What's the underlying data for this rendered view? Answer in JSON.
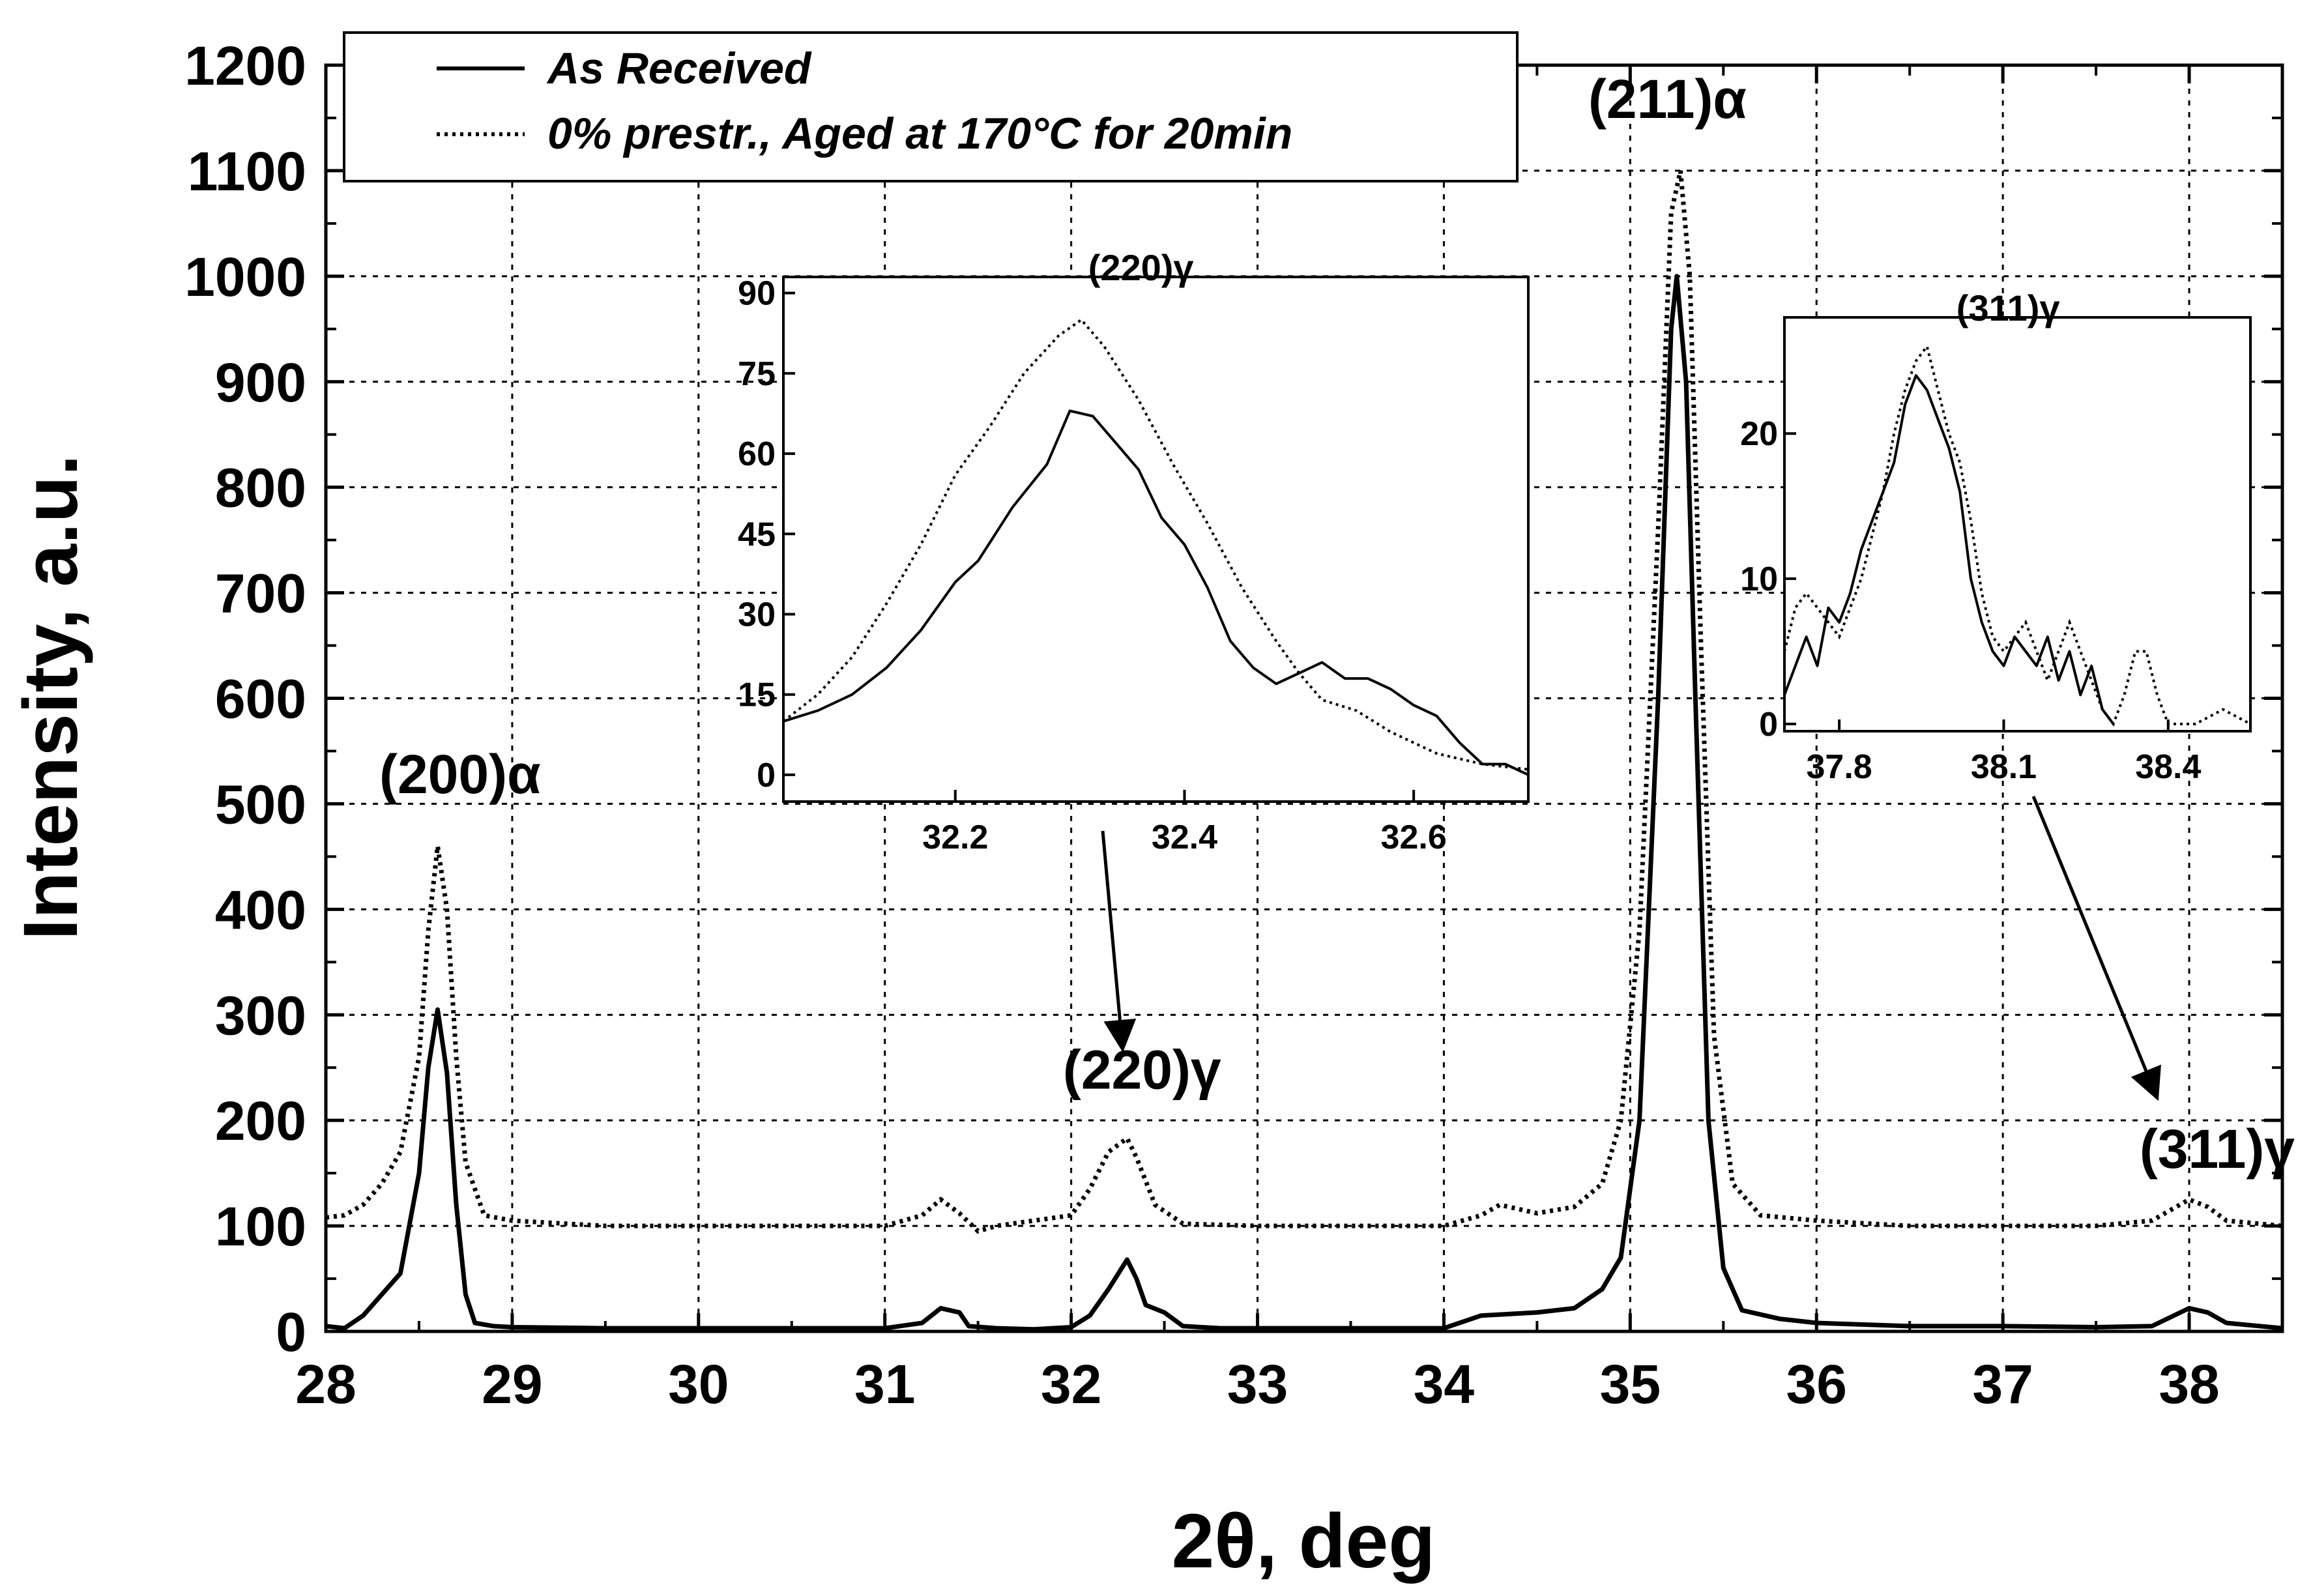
{
  "chart_data": [
    {
      "type": "line",
      "name": "main",
      "xlabel": "2θ, deg",
      "ylabel": "Intensity, a.u.",
      "xlim": [
        28,
        38.5
      ],
      "ylim": [
        0,
        1200
      ],
      "x_ticks": [
        "28",
        "29",
        "30",
        "31",
        "32",
        "33",
        "34",
        "35",
        "36",
        "37",
        "38"
      ],
      "y_ticks": [
        "0",
        "100",
        "200",
        "300",
        "400",
        "500",
        "600",
        "700",
        "800",
        "900",
        "1000",
        "1100",
        "1200"
      ],
      "grid": true,
      "legend": {
        "placement": "top-left",
        "entries": [
          "As Received",
          "0% prestr., Aged at 170°C for 20min"
        ]
      },
      "annotations": [
        {
          "text": "(200)α",
          "x": 28.72,
          "y": 510
        },
        {
          "text": "(220)γ",
          "x": 32.38,
          "y": 230
        },
        {
          "text": "(211)α",
          "x": 35.2,
          "y": 1150
        },
        {
          "text": "(311)γ",
          "x": 38.15,
          "y": 155
        }
      ],
      "series": [
        {
          "name": "As Received",
          "style": "solid",
          "points": [
            [
              28,
              5
            ],
            [
              28.1,
              3
            ],
            [
              28.2,
              15
            ],
            [
              28.3,
              35
            ],
            [
              28.4,
              55
            ],
            [
              28.5,
              150
            ],
            [
              28.55,
              250
            ],
            [
              28.6,
              305
            ],
            [
              28.65,
              245
            ],
            [
              28.7,
              120
            ],
            [
              28.75,
              35
            ],
            [
              28.8,
              8
            ],
            [
              28.9,
              5
            ],
            [
              29,
              4
            ],
            [
              29.5,
              3
            ],
            [
              30,
              3
            ],
            [
              30.5,
              3
            ],
            [
              31,
              3
            ],
            [
              31.2,
              8
            ],
            [
              31.3,
              22
            ],
            [
              31.4,
              18
            ],
            [
              31.45,
              5
            ],
            [
              31.6,
              3
            ],
            [
              31.8,
              2
            ],
            [
              32,
              4
            ],
            [
              32.1,
              15
            ],
            [
              32.2,
              40
            ],
            [
              32.3,
              68
            ],
            [
              32.35,
              50
            ],
            [
              32.4,
              25
            ],
            [
              32.5,
              18
            ],
            [
              32.6,
              5
            ],
            [
              32.8,
              3
            ],
            [
              33,
              3
            ],
            [
              33.5,
              3
            ],
            [
              34,
              3
            ],
            [
              34.2,
              15
            ],
            [
              34.5,
              18
            ],
            [
              34.7,
              22
            ],
            [
              34.85,
              40
            ],
            [
              34.95,
              70
            ],
            [
              35.05,
              200
            ],
            [
              35.15,
              600
            ],
            [
              35.22,
              950
            ],
            [
              35.25,
              1000
            ],
            [
              35.3,
              900
            ],
            [
              35.35,
              600
            ],
            [
              35.42,
              200
            ],
            [
              35.5,
              60
            ],
            [
              35.6,
              20
            ],
            [
              35.8,
              12
            ],
            [
              36,
              8
            ],
            [
              36.5,
              5
            ],
            [
              37,
              5
            ],
            [
              37.5,
              4
            ],
            [
              37.8,
              5
            ],
            [
              38,
              22
            ],
            [
              38.1,
              18
            ],
            [
              38.2,
              8
            ],
            [
              38.5,
              3
            ]
          ]
        },
        {
          "name": "0% prestr., Aged at 170°C for 20min",
          "style": "dotted",
          "points": [
            [
              28,
              108
            ],
            [
              28.1,
              110
            ],
            [
              28.2,
              120
            ],
            [
              28.3,
              140
            ],
            [
              28.4,
              170
            ],
            [
              28.5,
              260
            ],
            [
              28.55,
              380
            ],
            [
              28.6,
              460
            ],
            [
              28.65,
              400
            ],
            [
              28.7,
              260
            ],
            [
              28.75,
              160
            ],
            [
              28.85,
              110
            ],
            [
              29,
              105
            ],
            [
              29.5,
              100
            ],
            [
              30,
              100
            ],
            [
              30.5,
              100
            ],
            [
              31,
              100
            ],
            [
              31.2,
              110
            ],
            [
              31.3,
              125
            ],
            [
              31.4,
              112
            ],
            [
              31.5,
              95
            ],
            [
              31.6,
              100
            ],
            [
              31.8,
              105
            ],
            [
              32,
              110
            ],
            [
              32.1,
              135
            ],
            [
              32.2,
              170
            ],
            [
              32.3,
              183
            ],
            [
              32.35,
              165
            ],
            [
              32.45,
              120
            ],
            [
              32.6,
              102
            ],
            [
              33,
              100
            ],
            [
              33.5,
              100
            ],
            [
              34,
              100
            ],
            [
              34.2,
              110
            ],
            [
              34.3,
              120
            ],
            [
              34.5,
              112
            ],
            [
              34.7,
              118
            ],
            [
              34.85,
              140
            ],
            [
              34.95,
              200
            ],
            [
              35.05,
              380
            ],
            [
              35.15,
              760
            ],
            [
              35.22,
              1060
            ],
            [
              35.27,
              1100
            ],
            [
              35.32,
              1000
            ],
            [
              35.38,
              650
            ],
            [
              35.45,
              280
            ],
            [
              35.55,
              140
            ],
            [
              35.7,
              110
            ],
            [
              36,
              105
            ],
            [
              36.5,
              100
            ],
            [
              37,
              100
            ],
            [
              37.5,
              100
            ],
            [
              37.8,
              105
            ],
            [
              38,
              125
            ],
            [
              38.1,
              118
            ],
            [
              38.2,
              105
            ],
            [
              38.5,
              100
            ]
          ]
        }
      ]
    },
    {
      "type": "line",
      "name": "inset-220",
      "title": "(220)γ",
      "xlim": [
        32.05,
        32.7
      ],
      "ylim": [
        -5,
        93
      ],
      "x_ticks": [
        "32.2",
        "32.4",
        "32.6"
      ],
      "y_ticks": [
        "0",
        "15",
        "30",
        "45",
        "60",
        "75",
        "90"
      ],
      "grid": false,
      "series": [
        {
          "name": "As Received",
          "style": "solid",
          "points": [
            [
              32.05,
              10
            ],
            [
              32.08,
              12
            ],
            [
              32.11,
              15
            ],
            [
              32.14,
              20
            ],
            [
              32.17,
              27
            ],
            [
              32.2,
              36
            ],
            [
              32.22,
              40
            ],
            [
              32.25,
              50
            ],
            [
              32.28,
              58
            ],
            [
              32.3,
              68
            ],
            [
              32.32,
              67
            ],
            [
              32.34,
              62
            ],
            [
              32.36,
              57
            ],
            [
              32.38,
              48
            ],
            [
              32.4,
              43
            ],
            [
              32.42,
              35
            ],
            [
              32.44,
              25
            ],
            [
              32.46,
              20
            ],
            [
              32.48,
              17
            ],
            [
              32.5,
              19
            ],
            [
              32.52,
              21
            ],
            [
              32.54,
              18
            ],
            [
              32.56,
              18
            ],
            [
              32.58,
              16
            ],
            [
              32.6,
              13
            ],
            [
              32.62,
              11
            ],
            [
              32.64,
              6
            ],
            [
              32.66,
              2
            ],
            [
              32.68,
              2
            ],
            [
              32.7,
              0
            ]
          ]
        },
        {
          "name": "0% prestr., Aged at 170°C for 20min",
          "style": "dotted",
          "points": [
            [
              32.05,
              10
            ],
            [
              32.08,
              15
            ],
            [
              32.11,
              22
            ],
            [
              32.14,
              32
            ],
            [
              32.17,
              43
            ],
            [
              32.2,
              56
            ],
            [
              32.23,
              65
            ],
            [
              32.26,
              75
            ],
            [
              32.29,
              82
            ],
            [
              32.31,
              85
            ],
            [
              32.33,
              80
            ],
            [
              32.36,
              70
            ],
            [
              32.39,
              58
            ],
            [
              32.42,
              47
            ],
            [
              32.45,
              35
            ],
            [
              32.48,
              25
            ],
            [
              32.5,
              19
            ],
            [
              32.52,
              14
            ],
            [
              32.55,
              12
            ],
            [
              32.58,
              8
            ],
            [
              32.62,
              4
            ],
            [
              32.66,
              2
            ],
            [
              32.7,
              1
            ]
          ]
        }
      ]
    },
    {
      "type": "line",
      "name": "inset-311",
      "title": "(311)γ",
      "xlim": [
        37.7,
        38.55
      ],
      "ylim": [
        -0.5,
        28
      ],
      "x_ticks": [
        "37.8",
        "38.1",
        "38.4"
      ],
      "y_ticks": [
        "0",
        "10",
        "20"
      ],
      "grid": false,
      "series": [
        {
          "name": "As Received",
          "style": "solid",
          "points": [
            [
              37.7,
              2
            ],
            [
              37.72,
              4
            ],
            [
              37.74,
              6
            ],
            [
              37.76,
              4
            ],
            [
              37.78,
              8
            ],
            [
              37.8,
              7
            ],
            [
              37.82,
              9
            ],
            [
              37.84,
              12
            ],
            [
              37.86,
              14
            ],
            [
              37.88,
              16
            ],
            [
              37.9,
              18
            ],
            [
              37.92,
              22
            ],
            [
              37.94,
              24
            ],
            [
              37.96,
              23
            ],
            [
              37.98,
              21
            ],
            [
              38,
              19
            ],
            [
              38.02,
              16
            ],
            [
              38.04,
              10
            ],
            [
              38.06,
              7
            ],
            [
              38.08,
              5
            ],
            [
              38.1,
              4
            ],
            [
              38.12,
              6
            ],
            [
              38.14,
              5
            ],
            [
              38.16,
              4
            ],
            [
              38.18,
              6
            ],
            [
              38.2,
              3
            ],
            [
              38.22,
              5
            ],
            [
              38.24,
              2
            ],
            [
              38.26,
              4
            ],
            [
              38.28,
              1
            ],
            [
              38.3,
              0
            ]
          ]
        },
        {
          "name": "0% prestr., Aged at 170°C for 20min",
          "style": "dotted",
          "points": [
            [
              37.7,
              5
            ],
            [
              37.72,
              8
            ],
            [
              37.74,
              9
            ],
            [
              37.76,
              8
            ],
            [
              37.78,
              7
            ],
            [
              37.8,
              6
            ],
            [
              37.82,
              8
            ],
            [
              37.84,
              10
            ],
            [
              37.86,
              13
            ],
            [
              37.88,
              16
            ],
            [
              37.9,
              20
            ],
            [
              37.92,
              23
            ],
            [
              37.94,
              25
            ],
            [
              37.96,
              26
            ],
            [
              37.98,
              23
            ],
            [
              38,
              20
            ],
            [
              38.02,
              18
            ],
            [
              38.04,
              14
            ],
            [
              38.06,
              9
            ],
            [
              38.08,
              6
            ],
            [
              38.1,
              5
            ],
            [
              38.12,
              6
            ],
            [
              38.14,
              7
            ],
            [
              38.16,
              5
            ],
            [
              38.18,
              3
            ],
            [
              38.2,
              5
            ],
            [
              38.22,
              7
            ],
            [
              38.24,
              5
            ],
            [
              38.26,
              3
            ],
            [
              38.28,
              1
            ],
            [
              38.3,
              0
            ],
            [
              38.32,
              2
            ],
            [
              38.34,
              5
            ],
            [
              38.36,
              5
            ],
            [
              38.38,
              2
            ],
            [
              38.4,
              0
            ],
            [
              38.45,
              0
            ],
            [
              38.5,
              1
            ],
            [
              38.55,
              0
            ]
          ]
        }
      ]
    }
  ]
}
